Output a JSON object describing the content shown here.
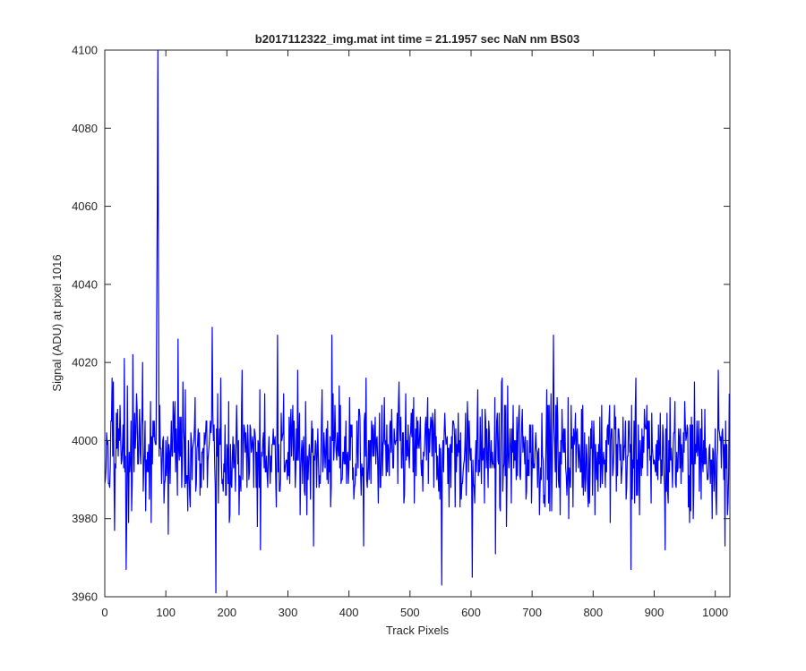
{
  "chart_data": {
    "type": "line",
    "title": "b2017112322_img.mat int time = 21.1957 sec  NaN nm BS03",
    "xlabel": "Track Pixels",
    "ylabel": "Signal (ADU) at pixel 1016",
    "xlim": [
      0,
      1024
    ],
    "ylim": [
      3960,
      4100
    ],
    "xticks": [
      0,
      100,
      200,
      300,
      400,
      500,
      600,
      700,
      800,
      900,
      1000
    ],
    "yticks": [
      3960,
      3980,
      4000,
      4020,
      4040,
      4060,
      4080,
      4100
    ],
    "grid": false,
    "series": [
      {
        "color": "#0000ff",
        "noise": {
          "n": 1024,
          "mean": 3997,
          "std": 7.5,
          "min": 3962,
          "max": 4028
        },
        "peaks": [
          {
            "x": 8,
            "y": 3988
          },
          {
            "x": 12,
            "y": 4016
          },
          {
            "x": 16,
            "y": 3977
          },
          {
            "x": 35,
            "y": 3967
          },
          {
            "x": 46,
            "y": 4022
          },
          {
            "x": 62,
            "y": 4020
          },
          {
            "x": 76,
            "y": 3979
          },
          {
            "x": 85,
            "y": 4030
          },
          {
            "x": 86,
            "y": 4060
          },
          {
            "x": 87,
            "y": 4100
          },
          {
            "x": 88,
            "y": 4040
          },
          {
            "x": 89,
            "y": 3996
          },
          {
            "x": 104,
            "y": 3976
          },
          {
            "x": 120,
            "y": 4026
          },
          {
            "x": 176,
            "y": 4029
          },
          {
            "x": 182,
            "y": 3961
          },
          {
            "x": 255,
            "y": 3972
          },
          {
            "x": 283,
            "y": 4027
          },
          {
            "x": 342,
            "y": 3973
          },
          {
            "x": 372,
            "y": 4027
          },
          {
            "x": 424,
            "y": 3973
          },
          {
            "x": 552,
            "y": 3963
          },
          {
            "x": 602,
            "y": 3965
          },
          {
            "x": 640,
            "y": 3971
          },
          {
            "x": 735,
            "y": 4027
          },
          {
            "x": 862,
            "y": 3967
          },
          {
            "x": 918,
            "y": 3972
          },
          {
            "x": 1005,
            "y": 4018
          },
          {
            "x": 1016,
            "y": 3973
          },
          {
            "x": 1023,
            "y": 4012
          }
        ]
      }
    ]
  }
}
